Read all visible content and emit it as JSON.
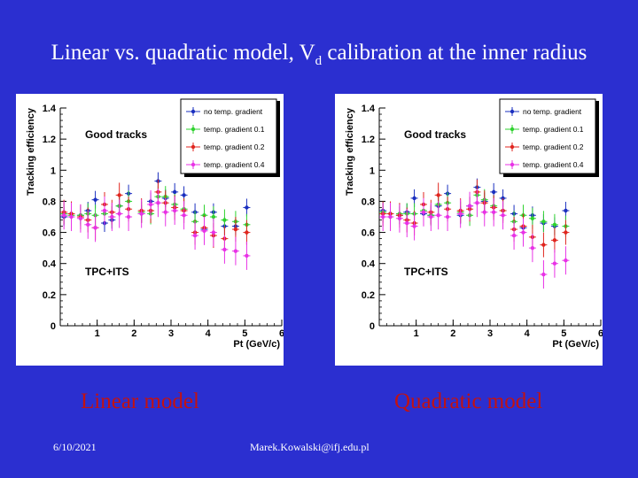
{
  "slide": {
    "title_before": "Linear vs. quadratic model, V",
    "title_sub": "d",
    "title_after": " calibration at the inner radius",
    "date": "6/10/2021",
    "email": "Marek.Kowalski@ifj.edu.pl"
  },
  "colors": {
    "background": "#2b2fd0",
    "model_label": "#c21212",
    "series": [
      "#1a2fbf",
      "#2fd22f",
      "#e0261f",
      "#e832e6"
    ]
  },
  "chart_data": [
    {
      "type": "scatter",
      "caption": "Linear model",
      "xlabel": "Pt (GeV/c)",
      "ylabel": "Tracking efficiency",
      "xlim": [
        0,
        6
      ],
      "ylim": [
        0,
        1.4
      ],
      "xticks": [
        "1",
        "2",
        "3",
        "4",
        "5",
        "6"
      ],
      "yticks": [
        "0",
        "0.2",
        "0.4",
        "0.6",
        "0.8",
        "1",
        "1.2",
        "1.4"
      ],
      "annotations": [
        "Good tracks",
        "TPC+ITS"
      ],
      "legend_position": "top-right",
      "series": [
        {
          "name": "no temp. gradient",
          "points": [
            [
              0.1,
              0.7
            ],
            [
              0.3,
              0.72
            ],
            [
              0.55,
              0.71
            ],
            [
              0.75,
              0.74
            ],
            [
              0.95,
              0.81
            ],
            [
              1.2,
              0.66
            ],
            [
              1.4,
              0.68
            ],
            [
              1.6,
              0.77
            ],
            [
              1.85,
              0.85
            ],
            [
              2.2,
              0.72
            ],
            [
              2.45,
              0.8
            ],
            [
              2.65,
              0.93
            ],
            [
              2.85,
              0.82
            ],
            [
              3.1,
              0.86
            ],
            [
              3.35,
              0.84
            ],
            [
              3.65,
              0.73
            ],
            [
              3.9,
              0.62
            ],
            [
              4.15,
              0.73
            ],
            [
              4.45,
              0.64
            ],
            [
              4.75,
              0.64
            ],
            [
              5.05,
              0.76
            ]
          ]
        },
        {
          "name": "temp. gradient 0.1",
          "points": [
            [
              0.1,
              0.72
            ],
            [
              0.3,
              0.71
            ],
            [
              0.55,
              0.71
            ],
            [
              0.75,
              0.72
            ],
            [
              0.95,
              0.71
            ],
            [
              1.2,
              0.72
            ],
            [
              1.4,
              0.7
            ],
            [
              1.6,
              0.77
            ],
            [
              1.85,
              0.8
            ],
            [
              2.2,
              0.73
            ],
            [
              2.45,
              0.72
            ],
            [
              2.65,
              0.83
            ],
            [
              2.85,
              0.83
            ],
            [
              3.1,
              0.78
            ],
            [
              3.35,
              0.75
            ],
            [
              3.65,
              0.67
            ],
            [
              3.9,
              0.71
            ],
            [
              4.15,
              0.7
            ],
            [
              4.45,
              0.68
            ],
            [
              4.75,
              0.67
            ],
            [
              5.05,
              0.65
            ]
          ]
        },
        {
          "name": "temp. gradient 0.2",
          "points": [
            [
              0.1,
              0.73
            ],
            [
              0.3,
              0.72
            ],
            [
              0.55,
              0.7
            ],
            [
              0.75,
              0.68
            ],
            [
              0.95,
              0.63
            ],
            [
              1.2,
              0.78
            ],
            [
              1.4,
              0.73
            ],
            [
              1.6,
              0.84
            ],
            [
              1.85,
              0.75
            ],
            [
              2.2,
              0.74
            ],
            [
              2.45,
              0.74
            ],
            [
              2.65,
              0.86
            ],
            [
              2.85,
              0.79
            ],
            [
              3.1,
              0.76
            ],
            [
              3.35,
              0.74
            ],
            [
              3.65,
              0.6
            ],
            [
              3.9,
              0.63
            ],
            [
              4.15,
              0.58
            ],
            [
              4.45,
              0.56
            ],
            [
              4.75,
              0.62
            ],
            [
              5.05,
              0.6
            ]
          ]
        },
        {
          "name": "temp. gradient 0.4",
          "points": [
            [
              0.1,
              0.71
            ],
            [
              0.3,
              0.7
            ],
            [
              0.55,
              0.69
            ],
            [
              0.75,
              0.65
            ],
            [
              0.95,
              0.63
            ],
            [
              1.2,
              0.74
            ],
            [
              1.4,
              0.7
            ],
            [
              1.6,
              0.72
            ],
            [
              1.85,
              0.7
            ],
            [
              2.2,
              0.72
            ],
            [
              2.45,
              0.78
            ],
            [
              2.65,
              0.79
            ],
            [
              2.85,
              0.73
            ],
            [
              3.1,
              0.74
            ],
            [
              3.35,
              0.71
            ],
            [
              3.65,
              0.58
            ],
            [
              3.9,
              0.61
            ],
            [
              4.15,
              0.6
            ],
            [
              4.45,
              0.49
            ],
            [
              4.75,
              0.48
            ],
            [
              5.05,
              0.45
            ]
          ]
        }
      ]
    },
    {
      "type": "scatter",
      "caption": "Quadratic model",
      "xlabel": "Pt (GeV/c)",
      "ylabel": "Tracking efficiency",
      "xlim": [
        0,
        6
      ],
      "ylim": [
        0,
        1.4
      ],
      "xticks": [
        "1",
        "2",
        "3",
        "4",
        "5",
        "6"
      ],
      "yticks": [
        "0",
        "0.2",
        "0.4",
        "0.6",
        "0.8",
        "1",
        "1.2",
        "1.4"
      ],
      "annotations": [
        "Good tracks",
        "TPC+ITS"
      ],
      "legend_position": "top-right",
      "series": [
        {
          "name": "no temp. gradient",
          "points": [
            [
              0.1,
              0.74
            ],
            [
              0.3,
              0.72
            ],
            [
              0.55,
              0.71
            ],
            [
              0.75,
              0.73
            ],
            [
              0.95,
              0.82
            ],
            [
              1.2,
              0.72
            ],
            [
              1.4,
              0.71
            ],
            [
              1.6,
              0.77
            ],
            [
              1.85,
              0.85
            ],
            [
              2.2,
              0.71
            ],
            [
              2.45,
              0.77
            ],
            [
              2.65,
              0.89
            ],
            [
              2.85,
              0.8
            ],
            [
              3.1,
              0.86
            ],
            [
              3.35,
              0.82
            ],
            [
              3.65,
              0.72
            ],
            [
              3.9,
              0.63
            ],
            [
              4.15,
              0.71
            ],
            [
              4.45,
              0.66
            ],
            [
              4.75,
              0.64
            ],
            [
              5.05,
              0.74
            ]
          ]
        },
        {
          "name": "temp. gradient 0.1",
          "points": [
            [
              0.1,
              0.73
            ],
            [
              0.3,
              0.7
            ],
            [
              0.55,
              0.72
            ],
            [
              0.75,
              0.72
            ],
            [
              0.95,
              0.72
            ],
            [
              1.2,
              0.74
            ],
            [
              1.4,
              0.71
            ],
            [
              1.6,
              0.78
            ],
            [
              1.85,
              0.79
            ],
            [
              2.2,
              0.73
            ],
            [
              2.45,
              0.71
            ],
            [
              2.65,
              0.84
            ],
            [
              2.85,
              0.81
            ],
            [
              3.1,
              0.77
            ],
            [
              3.35,
              0.74
            ],
            [
              3.65,
              0.67
            ],
            [
              3.9,
              0.71
            ],
            [
              4.15,
              0.69
            ],
            [
              4.45,
              0.67
            ],
            [
              4.75,
              0.65
            ],
            [
              5.05,
              0.64
            ]
          ]
        },
        {
          "name": "temp. gradient 0.2",
          "points": [
            [
              0.1,
              0.72
            ],
            [
              0.3,
              0.72
            ],
            [
              0.55,
              0.71
            ],
            [
              0.75,
              0.68
            ],
            [
              0.95,
              0.66
            ],
            [
              1.2,
              0.78
            ],
            [
              1.4,
              0.73
            ],
            [
              1.6,
              0.84
            ],
            [
              1.85,
              0.75
            ],
            [
              2.2,
              0.74
            ],
            [
              2.45,
              0.75
            ],
            [
              2.65,
              0.86
            ],
            [
              2.85,
              0.79
            ],
            [
              3.1,
              0.76
            ],
            [
              3.35,
              0.74
            ],
            [
              3.65,
              0.62
            ],
            [
              3.9,
              0.64
            ],
            [
              4.15,
              0.57
            ],
            [
              4.45,
              0.52
            ],
            [
              4.75,
              0.55
            ],
            [
              5.05,
              0.6
            ]
          ]
        },
        {
          "name": "temp. gradient 0.4",
          "points": [
            [
              0.1,
              0.7
            ],
            [
              0.3,
              0.7
            ],
            [
              0.55,
              0.69
            ],
            [
              0.75,
              0.66
            ],
            [
              0.95,
              0.64
            ],
            [
              1.2,
              0.73
            ],
            [
              1.4,
              0.7
            ],
            [
              1.6,
              0.71
            ],
            [
              1.85,
              0.7
            ],
            [
              2.2,
              0.72
            ],
            [
              2.45,
              0.77
            ],
            [
              2.65,
              0.79
            ],
            [
              2.85,
              0.73
            ],
            [
              3.1,
              0.73
            ],
            [
              3.35,
              0.71
            ],
            [
              3.65,
              0.58
            ],
            [
              3.9,
              0.6
            ],
            [
              4.15,
              0.5
            ],
            [
              4.45,
              0.33
            ],
            [
              4.75,
              0.4
            ],
            [
              5.05,
              0.42
            ]
          ]
        }
      ]
    }
  ]
}
